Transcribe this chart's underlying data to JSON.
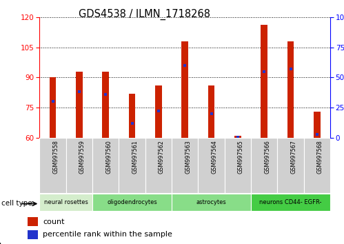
{
  "title": "GDS4538 / ILMN_1718268",
  "samples": [
    "GSM997558",
    "GSM997559",
    "GSM997560",
    "GSM997561",
    "GSM997562",
    "GSM997563",
    "GSM997564",
    "GSM997565",
    "GSM997566",
    "GSM997567",
    "GSM997568"
  ],
  "counts": [
    90,
    93,
    93,
    82,
    86,
    108,
    86,
    61,
    116,
    108,
    73
  ],
  "percentiles": [
    30,
    38,
    36,
    12,
    22,
    60,
    20,
    0.5,
    55,
    57,
    3
  ],
  "ylim_left": [
    60,
    120
  ],
  "ylim_right": [
    0,
    100
  ],
  "yticks_left": [
    60,
    75,
    90,
    105,
    120
  ],
  "yticks_right": [
    0,
    25,
    50,
    75,
    100
  ],
  "bar_color": "#CC2200",
  "percentile_color": "#2233CC",
  "bar_width": 0.25,
  "groups": [
    {
      "start": 0,
      "end": 1,
      "label": "neural rosettes",
      "color": "#d4edcc"
    },
    {
      "start": 2,
      "end": 4,
      "label": "oligodendrocytes",
      "color": "#88dd88"
    },
    {
      "start": 5,
      "end": 7,
      "label": "astrocytes",
      "color": "#88dd88"
    },
    {
      "start": 8,
      "end": 10,
      "label": "neurons CD44- EGFR-",
      "color": "#44cc44"
    }
  ],
  "sample_box_color": "#d0d0d0",
  "legend_count_label": "count",
  "legend_percentile_label": "percentile rank within the sample"
}
